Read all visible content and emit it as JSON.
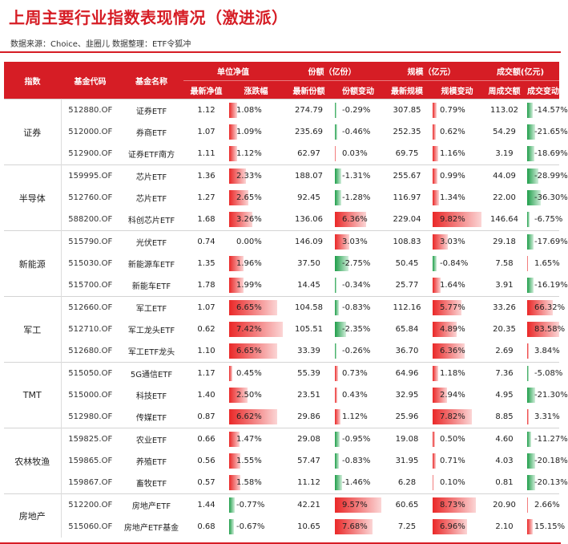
{
  "title": "上周主要行业指数表现情况（激进派）",
  "source": "数据来源：Choice、韭圈儿  数据整理：ETF令狐冲",
  "headers": {
    "index": "指数",
    "fund_code": "基金代码",
    "fund_name": "基金名称",
    "nav_group": "单位净值",
    "share_group": "份额（亿份）",
    "scale_group": "规模（亿元）",
    "turnover_group": "成交额(亿元)",
    "latest_nav": "最新净值",
    "change_pct": "涨跌幅",
    "latest_share": "最新份额",
    "share_change": "份额变动",
    "latest_scale": "最新规模",
    "scale_change": "规模变动",
    "weekly_turnover": "周成交额",
    "turnover_change": "成交变动"
  },
  "colors": {
    "accent": "#d61d25",
    "positive": "#ea2828",
    "negative": "#1f9e4a"
  },
  "groups": [
    {
      "index": "证券",
      "rows": [
        {
          "code": "512880.OF",
          "name": "证券ETF",
          "nav": "1.12",
          "chg": "1.08%",
          "chg_v": 1.08,
          "share": "274.79",
          "shchg": "-0.29%",
          "shchg_v": -0.29,
          "scale": "307.85",
          "scchg": "0.79%",
          "scchg_v": 0.79,
          "turnover": "113.02",
          "tochg": "-14.57%",
          "tochg_v": -14.57
        },
        {
          "code": "512000.OF",
          "name": "券商ETF",
          "nav": "1.07",
          "chg": "1.09%",
          "chg_v": 1.09,
          "share": "235.69",
          "shchg": "-0.46%",
          "shchg_v": -0.46,
          "scale": "252.35",
          "scchg": "0.62%",
          "scchg_v": 0.62,
          "turnover": "54.29",
          "tochg": "-21.65%",
          "tochg_v": -21.65
        },
        {
          "code": "512900.OF",
          "name": "证券ETF南方",
          "nav": "1.11",
          "chg": "1.12%",
          "chg_v": 1.12,
          "share": "62.97",
          "shchg": "0.03%",
          "shchg_v": 0.03,
          "scale": "69.75",
          "scchg": "1.16%",
          "scchg_v": 1.16,
          "turnover": "3.19",
          "tochg": "-18.69%",
          "tochg_v": -18.69
        }
      ]
    },
    {
      "index": "半导体",
      "rows": [
        {
          "code": "159995.OF",
          "name": "芯片ETF",
          "nav": "1.36",
          "chg": "2.33%",
          "chg_v": 2.33,
          "share": "188.07",
          "shchg": "-1.31%",
          "shchg_v": -1.31,
          "scale": "255.67",
          "scchg": "0.99%",
          "scchg_v": 0.99,
          "turnover": "44.09",
          "tochg": "-28.99%",
          "tochg_v": -28.99
        },
        {
          "code": "512760.OF",
          "name": "芯片ETF",
          "nav": "1.27",
          "chg": "2.65%",
          "chg_v": 2.65,
          "share": "92.45",
          "shchg": "-1.28%",
          "shchg_v": -1.28,
          "scale": "116.97",
          "scchg": "1.34%",
          "scchg_v": 1.34,
          "turnover": "22.00",
          "tochg": "-36.30%",
          "tochg_v": -36.3
        },
        {
          "code": "588200.OF",
          "name": "科创芯片ETF",
          "nav": "1.68",
          "chg": "3.26%",
          "chg_v": 3.26,
          "share": "136.06",
          "shchg": "6.36%",
          "shchg_v": 6.36,
          "scale": "229.04",
          "scchg": "9.82%",
          "scchg_v": 9.82,
          "turnover": "146.64",
          "tochg": "-6.75%",
          "tochg_v": -6.75
        }
      ]
    },
    {
      "index": "新能源",
      "rows": [
        {
          "code": "515790.OF",
          "name": "光伏ETF",
          "nav": "0.74",
          "chg": "0.00%",
          "chg_v": 0.0,
          "share": "146.09",
          "shchg": "3.03%",
          "shchg_v": 3.03,
          "scale": "108.83",
          "scchg": "3.03%",
          "scchg_v": 3.03,
          "turnover": "29.18",
          "tochg": "-17.69%",
          "tochg_v": -17.69
        },
        {
          "code": "515030.OF",
          "name": "新能源车ETF",
          "nav": "1.35",
          "chg": "1.96%",
          "chg_v": 1.96,
          "share": "37.50",
          "shchg": "-2.75%",
          "shchg_v": -2.75,
          "scale": "50.45",
          "scchg": "-0.84%",
          "scchg_v": -0.84,
          "turnover": "7.58",
          "tochg": "1.65%",
          "tochg_v": 1.65
        },
        {
          "code": "515700.OF",
          "name": "新能车ETF",
          "nav": "1.78",
          "chg": "1.99%",
          "chg_v": 1.99,
          "share": "14.45",
          "shchg": "-0.34%",
          "shchg_v": -0.34,
          "scale": "25.77",
          "scchg": "1.64%",
          "scchg_v": 1.64,
          "turnover": "3.91",
          "tochg": "-16.19%",
          "tochg_v": -16.19
        }
      ]
    },
    {
      "index": "军工",
      "rows": [
        {
          "code": "512660.OF",
          "name": "军工ETF",
          "nav": "1.07",
          "chg": "6.65%",
          "chg_v": 6.65,
          "share": "104.58",
          "shchg": "-0.83%",
          "shchg_v": -0.83,
          "scale": "112.16",
          "scchg": "5.77%",
          "scchg_v": 5.77,
          "turnover": "33.26",
          "tochg": "66.32%",
          "tochg_v": 66.32
        },
        {
          "code": "512710.OF",
          "name": "军工龙头ETF",
          "nav": "0.62",
          "chg": "7.42%",
          "chg_v": 7.42,
          "share": "105.51",
          "shchg": "-2.35%",
          "shchg_v": -2.35,
          "scale": "65.84",
          "scchg": "4.89%",
          "scchg_v": 4.89,
          "turnover": "20.35",
          "tochg": "83.58%",
          "tochg_v": 83.58
        },
        {
          "code": "512680.OF",
          "name": "军工ETF龙头",
          "nav": "1.10",
          "chg": "6.65%",
          "chg_v": 6.65,
          "share": "33.39",
          "shchg": "-0.26%",
          "shchg_v": -0.26,
          "scale": "36.70",
          "scchg": "6.36%",
          "scchg_v": 6.36,
          "turnover": "2.69",
          "tochg": "3.84%",
          "tochg_v": 3.84
        }
      ]
    },
    {
      "index": "TMT",
      "rows": [
        {
          "code": "515050.OF",
          "name": "5G通信ETF",
          "nav": "1.17",
          "chg": "0.45%",
          "chg_v": 0.45,
          "share": "55.39",
          "shchg": "0.73%",
          "shchg_v": 0.73,
          "scale": "64.96",
          "scchg": "1.18%",
          "scchg_v": 1.18,
          "turnover": "7.36",
          "tochg": "-5.08%",
          "tochg_v": -5.08
        },
        {
          "code": "515000.OF",
          "name": "科技ETF",
          "nav": "1.40",
          "chg": "2.50%",
          "chg_v": 2.5,
          "share": "23.51",
          "shchg": "0.43%",
          "shchg_v": 0.43,
          "scale": "32.95",
          "scchg": "2.94%",
          "scchg_v": 2.94,
          "turnover": "4.95",
          "tochg": "-21.30%",
          "tochg_v": -21.3
        },
        {
          "code": "512980.OF",
          "name": "传媒ETF",
          "nav": "0.87",
          "chg": "6.62%",
          "chg_v": 6.62,
          "share": "29.86",
          "shchg": "1.12%",
          "shchg_v": 1.12,
          "scale": "25.96",
          "scchg": "7.82%",
          "scchg_v": 7.82,
          "turnover": "8.85",
          "tochg": "3.31%",
          "tochg_v": 3.31
        }
      ]
    },
    {
      "index": "农林牧渔",
      "rows": [
        {
          "code": "159825.OF",
          "name": "农业ETF",
          "nav": "0.66",
          "chg": "1.47%",
          "chg_v": 1.47,
          "share": "29.08",
          "shchg": "-0.95%",
          "shchg_v": -0.95,
          "scale": "19.08",
          "scchg": "0.50%",
          "scchg_v": 0.5,
          "turnover": "4.60",
          "tochg": "-11.27%",
          "tochg_v": -11.27
        },
        {
          "code": "159865.OF",
          "name": "养殖ETF",
          "nav": "0.56",
          "chg": "1.55%",
          "chg_v": 1.55,
          "share": "57.47",
          "shchg": "-0.83%",
          "shchg_v": -0.83,
          "scale": "31.95",
          "scchg": "0.71%",
          "scchg_v": 0.71,
          "turnover": "4.03",
          "tochg": "-20.18%",
          "tochg_v": -20.18
        },
        {
          "code": "159867.OF",
          "name": "畜牧ETF",
          "nav": "0.57",
          "chg": "1.58%",
          "chg_v": 1.58,
          "share": "11.12",
          "shchg": "-1.46%",
          "shchg_v": -1.46,
          "scale": "6.28",
          "scchg": "0.10%",
          "scchg_v": 0.1,
          "turnover": "0.81",
          "tochg": "-20.13%",
          "tochg_v": -20.13
        }
      ]
    },
    {
      "index": "房地产",
      "rows": [
        {
          "code": "512200.OF",
          "name": "房地产ETF",
          "nav": "1.44",
          "chg": "-0.77%",
          "chg_v": -0.77,
          "share": "42.21",
          "shchg": "9.57%",
          "shchg_v": 9.57,
          "scale": "60.65",
          "scchg": "8.73%",
          "scchg_v": 8.73,
          "turnover": "20.90",
          "tochg": "2.66%",
          "tochg_v": 2.66
        },
        {
          "code": "515060.OF",
          "name": "房地产ETF基金",
          "nav": "0.68",
          "chg": "-0.67%",
          "chg_v": -0.67,
          "share": "10.65",
          "shchg": "7.68%",
          "shchg_v": 7.68,
          "scale": "7.25",
          "scchg": "6.96%",
          "scchg_v": 6.96,
          "turnover": "2.10",
          "tochg": "15.15%",
          "tochg_v": 15.15
        }
      ]
    }
  ]
}
